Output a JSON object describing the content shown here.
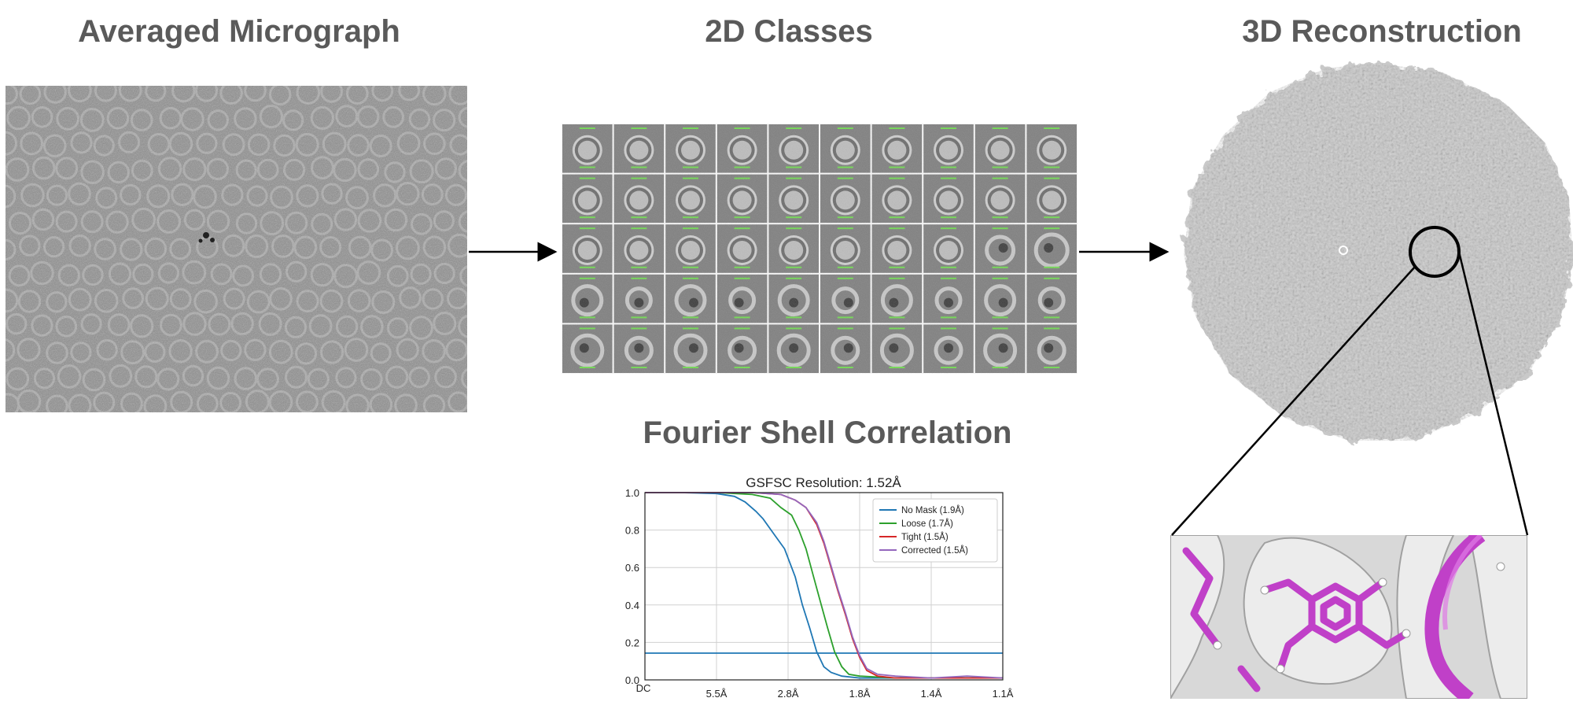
{
  "headings": {
    "micrograph": "Averaged Micrograph",
    "classes": "2D Classes",
    "reconstruction": "3D Reconstruction",
    "fsc": "Fourier Shell Correlation"
  },
  "colors": {
    "heading": "#5a5a5a",
    "no_mask": "#1f77b4",
    "loose": "#2ca02c",
    "tight": "#d62728",
    "corrected": "#9467bd",
    "threshold": "#1f77b4",
    "ligand": "#c040c8"
  },
  "chart_data": {
    "type": "line",
    "title": "GSFSC Resolution: 1.52Å",
    "xlabel": "",
    "ylabel": "",
    "xlim": [
      0,
      1
    ],
    "ylim": [
      0,
      1.0
    ],
    "grid": true,
    "legend_position": "top-right",
    "x_ticks": [
      "DC",
      "5.5Å",
      "2.8Å",
      "1.8Å",
      "1.4Å",
      "1.1Å"
    ],
    "y_ticks": [
      "0.0",
      "0.2",
      "0.4",
      "0.6",
      "0.8",
      "1.0"
    ],
    "threshold": 0.143,
    "series": [
      {
        "name": "No Mask (1.9Å)",
        "color": "#1f77b4",
        "x": [
          0,
          0.1,
          0.2,
          0.25,
          0.28,
          0.31,
          0.33,
          0.36,
          0.39,
          0.42,
          0.44,
          0.46,
          0.48,
          0.5,
          0.52,
          0.55,
          0.6,
          0.7,
          0.8,
          0.9,
          1.0
        ],
        "y": [
          1.0,
          1.0,
          0.995,
          0.98,
          0.95,
          0.9,
          0.86,
          0.78,
          0.7,
          0.55,
          0.4,
          0.28,
          0.15,
          0.07,
          0.04,
          0.02,
          0.01,
          0.01,
          0.01,
          0.01,
          0.01
        ]
      },
      {
        "name": "Loose (1.7Å)",
        "color": "#2ca02c",
        "x": [
          0,
          0.1,
          0.2,
          0.3,
          0.35,
          0.38,
          0.41,
          0.43,
          0.45,
          0.47,
          0.49,
          0.51,
          0.53,
          0.55,
          0.57,
          0.6,
          0.7,
          0.8,
          0.9,
          1.0
        ],
        "y": [
          1.0,
          1.0,
          1.0,
          0.99,
          0.97,
          0.92,
          0.88,
          0.8,
          0.7,
          0.56,
          0.42,
          0.28,
          0.15,
          0.07,
          0.03,
          0.02,
          0.01,
          0.01,
          0.01,
          0.01
        ]
      },
      {
        "name": "Tight (1.5Å)",
        "color": "#d62728",
        "x": [
          0,
          0.1,
          0.2,
          0.3,
          0.38,
          0.42,
          0.45,
          0.48,
          0.5,
          0.52,
          0.54,
          0.56,
          0.58,
          0.6,
          0.62,
          0.65,
          0.7,
          0.8,
          0.9,
          1.0
        ],
        "y": [
          1.0,
          1.0,
          1.0,
          1.0,
          0.99,
          0.96,
          0.92,
          0.83,
          0.73,
          0.6,
          0.47,
          0.35,
          0.22,
          0.12,
          0.05,
          0.02,
          0.01,
          0.01,
          0.01,
          0.01
        ]
      },
      {
        "name": "Corrected (1.5Å)",
        "color": "#9467bd",
        "x": [
          0,
          0.1,
          0.2,
          0.3,
          0.38,
          0.42,
          0.45,
          0.48,
          0.5,
          0.52,
          0.54,
          0.56,
          0.58,
          0.6,
          0.62,
          0.65,
          0.7,
          0.8,
          0.9,
          1.0
        ],
        "y": [
          1.0,
          1.0,
          1.0,
          1.0,
          0.99,
          0.96,
          0.92,
          0.84,
          0.74,
          0.61,
          0.48,
          0.36,
          0.23,
          0.13,
          0.06,
          0.03,
          0.02,
          0.01,
          0.02,
          0.01
        ]
      }
    ]
  }
}
